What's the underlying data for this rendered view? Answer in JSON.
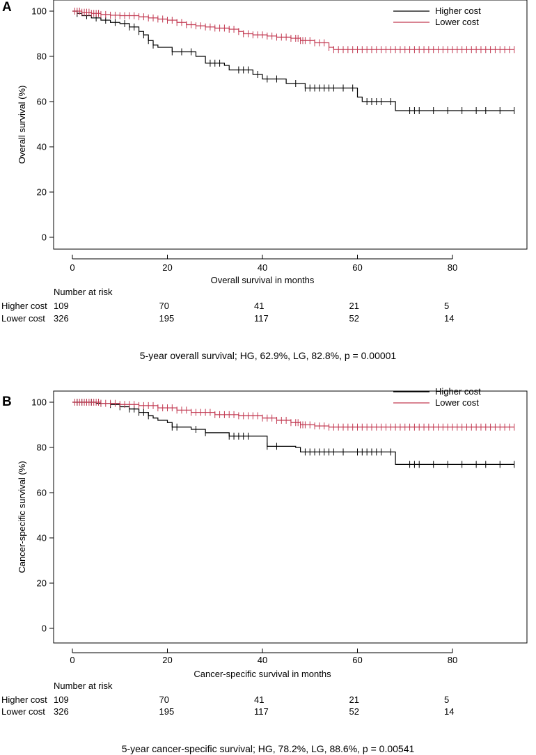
{
  "chart_data": [
    {
      "type": "line",
      "panel_label": "A",
      "title": "",
      "xlabel": "Overall survival in months",
      "ylabel": "Overall survival (%)",
      "xlim": [
        -4,
        95
      ],
      "ylim": [
        -2,
        101
      ],
      "xticks": [
        0,
        20,
        40,
        60,
        80
      ],
      "yticks": [
        0,
        20,
        40,
        60,
        80,
        100
      ],
      "grid": false,
      "legend_position": "top-right",
      "series": [
        {
          "name": "Higher cost",
          "color": "#000000",
          "x": [
            0,
            1,
            2,
            4,
            6,
            8,
            10,
            12,
            14,
            15,
            16,
            17,
            18,
            21,
            22,
            26,
            28,
            32,
            33,
            38,
            40,
            44,
            45,
            49,
            60,
            61,
            64,
            68,
            70,
            93
          ],
          "y": [
            100,
            99,
            98,
            97,
            96,
            95,
            94.5,
            93,
            91,
            89.5,
            87,
            85,
            84,
            82,
            82,
            80,
            77,
            76,
            74,
            72,
            70,
            70,
            68,
            66,
            62,
            60,
            60,
            56,
            56,
            56
          ],
          "censor_x": [
            1,
            3,
            5,
            7,
            9,
            11,
            12,
            13,
            14,
            15,
            16,
            17,
            21,
            23,
            25,
            29,
            30,
            31,
            35,
            36,
            37,
            39,
            41,
            43,
            47,
            49,
            50,
            51,
            52,
            53,
            54,
            55,
            57,
            59,
            62,
            63,
            64,
            65,
            67,
            71,
            72,
            73,
            76,
            79,
            82,
            85,
            87,
            90,
            93
          ]
        },
        {
          "name": "Lower cost",
          "color": "#c23a52",
          "x": [
            0,
            2,
            4,
            6,
            8,
            10,
            14,
            16,
            18,
            20,
            22,
            24,
            26,
            28,
            30,
            33,
            35,
            36,
            38,
            41,
            43,
            46,
            48,
            51,
            54,
            55,
            93
          ],
          "y": [
            100,
            99.5,
            99,
            98.5,
            98.2,
            98,
            97.5,
            97,
            96.5,
            96,
            95,
            94,
            93.5,
            93,
            92.5,
            92,
            91,
            90,
            89.5,
            89,
            88.5,
            88,
            87,
            86,
            84,
            83,
            83
          ],
          "censor_x": [
            0.5,
            1,
            1.5,
            2,
            2.5,
            3,
            3.5,
            4,
            4.5,
            5,
            5.5,
            6,
            7,
            8,
            9,
            10,
            11,
            12,
            13,
            14,
            15,
            16,
            17,
            18,
            19,
            20,
            21,
            22,
            23,
            24,
            25,
            26,
            27,
            28,
            29,
            30,
            31,
            32,
            33,
            34,
            35,
            36,
            37,
            38,
            39,
            40,
            41,
            42,
            43,
            44,
            45,
            46,
            47,
            47.5,
            48,
            48.5,
            49,
            50,
            51,
            52,
            53,
            54,
            55,
            56,
            57,
            58,
            59,
            60,
            61,
            62,
            63,
            64,
            65,
            66,
            67,
            68,
            69,
            70,
            71,
            72,
            73,
            74,
            75,
            76,
            77,
            78,
            79,
            80,
            81,
            82,
            83,
            84,
            85,
            86,
            87,
            88,
            89,
            90,
            91,
            92,
            93
          ]
        }
      ],
      "risk_table": {
        "header": "Number at risk",
        "times": [
          0,
          20,
          40,
          60,
          80
        ],
        "rows": [
          {
            "label": "Higher cost",
            "values": [
              "109",
              "70",
              "41",
              "21",
              "5"
            ]
          },
          {
            "label": "Lower cost",
            "values": [
              "326",
              "195",
              "117",
              "52",
              "14"
            ]
          }
        ]
      },
      "caption": "5-year overall survival; HG, 62.9%, LG, 82.8%, p = 0.00001"
    },
    {
      "type": "line",
      "panel_label": "B",
      "title": "",
      "xlabel": "Cancer-specific survival in months",
      "ylabel": "Cancer-specific survival (%)",
      "xlim": [
        -4,
        95
      ],
      "ylim": [
        -2,
        101
      ],
      "xticks": [
        0,
        20,
        40,
        60,
        80
      ],
      "yticks": [
        0,
        20,
        40,
        60,
        80,
        100
      ],
      "grid": false,
      "legend_position": "top-right",
      "series": [
        {
          "name": "Higher cost",
          "color": "#000000",
          "x": [
            0,
            5,
            8,
            10,
            12,
            14,
            16,
            17,
            18,
            20,
            21,
            25,
            28,
            33,
            41,
            47,
            48,
            68,
            93
          ],
          "y": [
            100,
            99.5,
            99,
            98,
            97,
            95.5,
            94,
            93,
            92,
            91,
            89,
            88,
            86.5,
            85,
            80.5,
            80,
            78,
            72.5,
            72.5
          ],
          "censor_x": [
            1,
            2,
            3,
            4,
            6,
            8,
            10,
            12,
            13,
            14,
            15,
            16,
            21,
            22,
            26,
            28,
            33,
            34,
            35,
            36,
            37,
            41,
            43,
            49,
            50,
            51,
            52,
            53,
            54,
            55,
            57,
            60,
            61,
            62,
            63,
            64,
            65,
            67,
            71,
            72,
            73,
            76,
            79,
            82,
            85,
            87,
            90,
            93
          ]
        },
        {
          "name": "Lower cost",
          "color": "#c23a52",
          "x": [
            0,
            6,
            10,
            14,
            18,
            22,
            25,
            30,
            35,
            40,
            43,
            46,
            48,
            51,
            54,
            93
          ],
          "y": [
            100,
            99.5,
            99,
            98.5,
            97.5,
            96.5,
            95.5,
            94.5,
            94,
            93,
            92,
            91,
            90,
            89.5,
            89,
            89
          ],
          "censor_x": [
            0.5,
            1,
            1.5,
            2,
            2.5,
            3,
            3.5,
            4,
            4.5,
            5,
            5.5,
            6,
            7,
            8,
            9,
            10,
            11,
            12,
            13,
            14,
            15,
            16,
            17,
            18,
            19,
            20,
            21,
            22,
            23,
            24,
            25,
            26,
            27,
            28,
            29,
            30,
            31,
            32,
            33,
            34,
            35,
            36,
            37,
            38,
            39,
            40,
            41,
            42,
            43,
            44,
            45,
            46,
            47,
            47.5,
            48,
            48.5,
            49,
            50,
            51,
            52,
            53,
            54,
            55,
            56,
            57,
            58,
            59,
            60,
            61,
            62,
            63,
            64,
            65,
            66,
            67,
            68,
            69,
            70,
            71,
            72,
            73,
            74,
            75,
            76,
            77,
            78,
            79,
            80,
            81,
            82,
            83,
            84,
            85,
            86,
            87,
            88,
            89,
            90,
            91,
            92,
            93
          ]
        }
      ],
      "risk_table": {
        "header": "Number at risk",
        "times": [
          0,
          20,
          40,
          60,
          80
        ],
        "rows": [
          {
            "label": "Higher cost",
            "values": [
              "109",
              "70",
              "41",
              "21",
              "5"
            ]
          },
          {
            "label": "Lower cost",
            "values": [
              "326",
              "195",
              "117",
              "52",
              "14"
            ]
          }
        ]
      },
      "caption": "5-year cancer-specific survival; HG, 78.2%, LG, 88.6%, p = 0.00541"
    }
  ]
}
